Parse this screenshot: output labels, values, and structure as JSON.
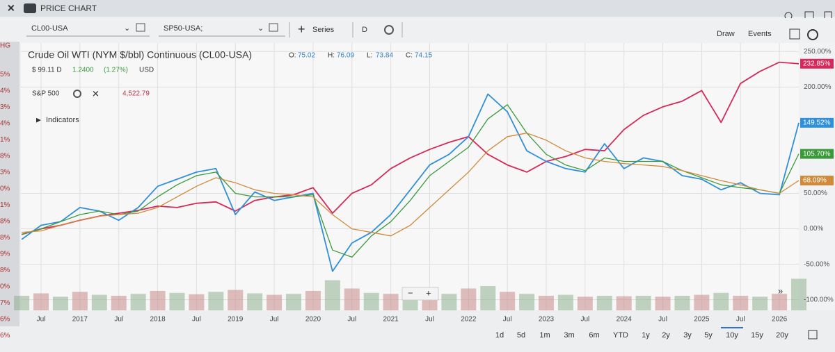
{
  "app": {
    "window_title": "PRICE CHART",
    "toolbar": {
      "symbol_1": "CL00-USA",
      "symbol_2": "SP50-USA;",
      "series": "Series",
      "interval": "D",
      "draw": "Draw",
      "events": "Events"
    },
    "left_strip": [
      "HG",
      "5%",
      "4%",
      "3%",
      "4%",
      "1%",
      "8%",
      "3%",
      "0%",
      "1%",
      "8%",
      "8%",
      "9%",
      "8%",
      "0%",
      "7%",
      "6%",
      "6%"
    ],
    "zoom": [
      "−",
      "+"
    ],
    "range_buttons": [
      "1d",
      "5d",
      "1m",
      "3m",
      "6m",
      "YTD",
      "1y",
      "2y",
      "3y",
      "5y",
      "10y",
      "15y",
      "20y"
    ],
    "selected_range": "10y"
  },
  "chart_data": {
    "type": "line",
    "title": "Crude Oil WTI (NYM $/bbl) Continuous (CL00-USA)",
    "ohlc": [
      {
        "label": "O:",
        "value": "75.02"
      },
      {
        "label": "H:",
        "value": "76.09"
      },
      {
        "label": "L:",
        "value": "73.84"
      },
      {
        "label": "C:",
        "value": "74.15"
      }
    ],
    "price": "$ 99.11 D",
    "change": "1.2400",
    "change_pct": "(1.27%)",
    "currency": "USD",
    "compare_name": "S&P 500",
    "compare_value": "4,522.79",
    "indicators": "Indicators",
    "x": [
      2016.25,
      2016.5,
      2016.75,
      2017.0,
      2017.25,
      2017.5,
      2017.75,
      2018.0,
      2018.25,
      2018.5,
      2018.75,
      2019.0,
      2019.25,
      2019.5,
      2019.75,
      2020.0,
      2020.25,
      2020.5,
      2020.75,
      2021.0,
      2021.25,
      2021.5,
      2021.75,
      2022.0,
      2022.25,
      2022.5,
      2022.75,
      2023.0,
      2023.25,
      2023.5,
      2023.75,
      2024.0,
      2024.25,
      2024.5,
      2024.75,
      2025.0,
      2025.25,
      2025.5,
      2025.75,
      2026.0,
      2026.25
    ],
    "series": [
      {
        "name": "S&P 500",
        "color": "#d6285a",
        "end_label": "232.85%",
        "values": [
          -8,
          0,
          5,
          12,
          18,
          22,
          26,
          32,
          30,
          36,
          38,
          25,
          40,
          45,
          48,
          58,
          22,
          50,
          62,
          85,
          100,
          112,
          122,
          130,
          105,
          90,
          80,
          95,
          102,
          112,
          110,
          140,
          160,
          172,
          180,
          195,
          150,
          205,
          222,
          235,
          232.85
        ]
      },
      {
        "name": "CL00-USA",
        "color": "#2f8fd8",
        "end_label": "149.52%",
        "values": [
          -15,
          5,
          10,
          30,
          25,
          12,
          30,
          60,
          70,
          80,
          85,
          20,
          52,
          40,
          45,
          50,
          -60,
          -20,
          -5,
          20,
          55,
          90,
          105,
          130,
          190,
          165,
          110,
          95,
          85,
          80,
          120,
          85,
          100,
          95,
          75,
          70,
          55,
          65,
          50,
          48,
          149.52
        ]
      },
      {
        "color": "#3a9a3a",
        "end_label": "105.70%",
        "values": [
          -8,
          0,
          10,
          20,
          25,
          20,
          25,
          45,
          62,
          75,
          80,
          50,
          45,
          45,
          45,
          48,
          -30,
          -40,
          -10,
          10,
          40,
          75,
          95,
          115,
          155,
          175,
          135,
          105,
          90,
          82,
          100,
          95,
          95,
          95,
          82,
          72,
          62,
          58,
          55,
          50,
          105.7
        ]
      },
      {
        "color": "#d08a3a",
        "end_label": "68.09%",
        "values": [
          -5,
          -3,
          5,
          12,
          18,
          20,
          22,
          30,
          45,
          60,
          72,
          65,
          55,
          50,
          48,
          45,
          20,
          0,
          -5,
          -10,
          5,
          30,
          55,
          80,
          110,
          130,
          135,
          125,
          110,
          100,
          95,
          92,
          90,
          88,
          82,
          75,
          68,
          62,
          55,
          50,
          68.09
        ]
      }
    ],
    "volume": [
      30,
      35,
      28,
      38,
      32,
      30,
      34,
      40,
      36,
      33,
      38,
      42,
      35,
      32,
      34,
      40,
      62,
      45,
      36,
      34,
      33,
      32,
      34,
      45,
      50,
      38,
      34,
      30,
      32,
      28,
      30,
      29,
      30,
      28,
      30,
      32,
      36,
      30,
      28,
      34,
      65
    ],
    "volume_lim": [
      0,
      100
    ],
    "xlim": [
      2016.24,
      2026.25
    ],
    "ylim": [
      -115,
      262
    ],
    "xticks": [
      {
        "value": 2016.5,
        "label": "Jul"
      },
      2017,
      {
        "value": 2017.5,
        "label": "Jul"
      },
      2018,
      {
        "value": 2018.5,
        "label": "Jul"
      },
      2019,
      {
        "value": 2019.5,
        "label": "Jul"
      },
      2020,
      {
        "value": 2020.5,
        "label": "Jul"
      },
      2021,
      {
        "value": 2021.5,
        "label": "Jul"
      },
      2022,
      {
        "value": 2022.5,
        "label": "Jul"
      },
      2023,
      {
        "value": 2023.5,
        "label": "Jul"
      },
      2024,
      {
        "value": 2024.5,
        "label": "Jul"
      },
      2025,
      {
        "value": 2025.5,
        "label": "Jul"
      },
      2026
    ],
    "yticks": [
      {
        "value": -100,
        "label": "-100.00%"
      },
      {
        "value": -50,
        "label": "-50.00%"
      },
      {
        "value": 0,
        "label": "0.00%"
      },
      {
        "value": 50,
        "label": "50.00%"
      },
      {
        "value": 200,
        "label": "200.00%"
      },
      {
        "value": 250,
        "label": "250.00%"
      }
    ],
    "grid": true
  }
}
